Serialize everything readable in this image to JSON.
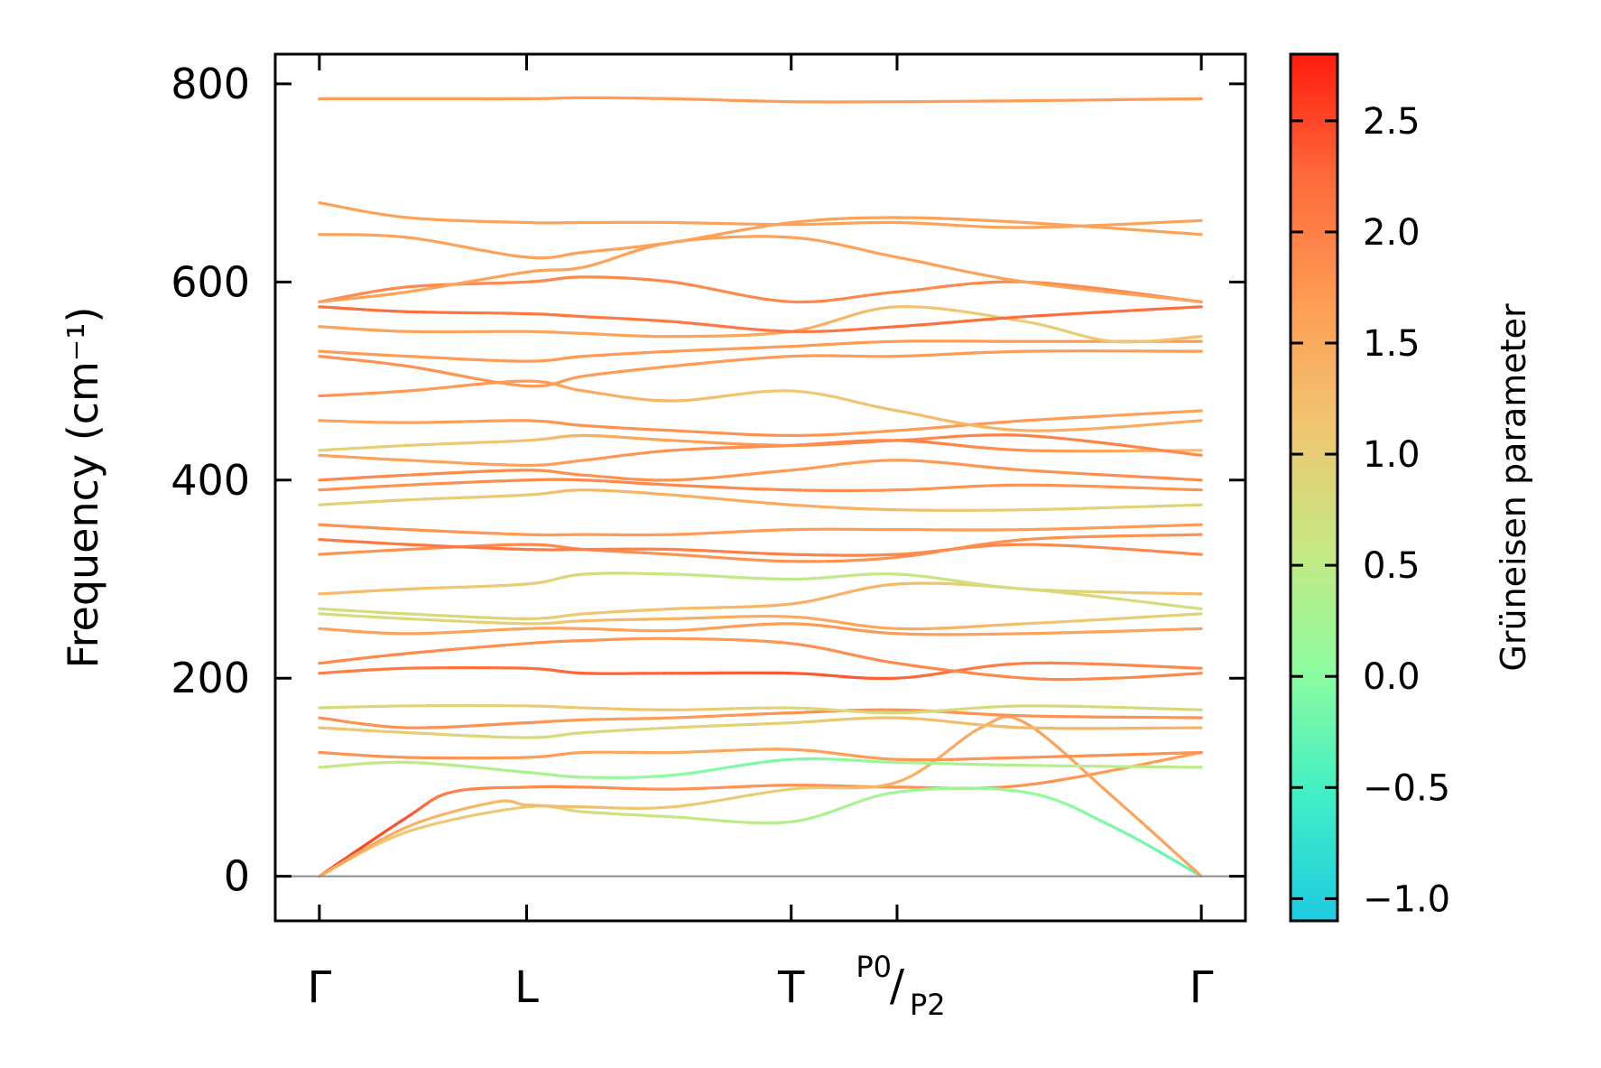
{
  "chart_data": {
    "type": "line",
    "ylabel": "Frequency (cm⁻¹)",
    "colorbar_label": "Grüneisen parameter",
    "ylim": [
      -45,
      830
    ],
    "yticks": [
      0,
      200,
      400,
      600,
      800
    ],
    "ytick_labels": [
      "0",
      "200",
      "400",
      "600",
      "800"
    ],
    "x_range": [
      -0.05,
      1.05
    ],
    "kpoints": [
      {
        "label": "Γ",
        "x": 0.0
      },
      {
        "label": "L",
        "x": 0.235
      },
      {
        "label": "T",
        "x": 0.535
      },
      {
        "label": "P0",
        "sub": "P2",
        "x": 0.655
      },
      {
        "label": "Γ",
        "x": 1.0
      }
    ],
    "colorbar": {
      "min": -1.1,
      "max": 2.8,
      "ticks": [
        -1.0,
        -0.5,
        0.0,
        0.5,
        1.0,
        1.5,
        2.0,
        2.5
      ],
      "tick_labels": [
        "−1.0",
        "−0.5",
        "0.0",
        "0.5",
        "1.0",
        "1.5",
        "2.0",
        "2.5"
      ],
      "colormap": [
        "#1ecbe1",
        "#40efc6",
        "#8cfc9f",
        "#c5e883",
        "#f0c671",
        "#ff9c55",
        "#ff6b3c",
        "#ff1c0d"
      ]
    },
    "zero_line_color": "#8c8c8c",
    "series": [
      {
        "x": [
          0,
          0.1,
          0.15,
          0.235,
          0.3,
          0.4,
          0.535,
          0.655,
          0.8,
          1
        ],
        "y": [
          0,
          60,
          85,
          90,
          90,
          88,
          92,
          90,
          92,
          125
        ],
        "g": [
          2.6,
          2.4,
          2.0,
          1.9,
          1.9,
          1.8,
          1.8,
          1.8,
          1.8,
          1.6
        ]
      },
      {
        "x": [
          0,
          0.1,
          0.235,
          0.3,
          0.4,
          0.535,
          0.655,
          0.8,
          0.9,
          1
        ],
        "y": [
          0,
          45,
          70,
          65,
          60,
          55,
          85,
          85,
          50,
          0
        ],
        "g": [
          1.2,
          1.1,
          1.0,
          0.8,
          0.6,
          0.4,
          0.2,
          0.1,
          -0.1,
          -0.3
        ]
      },
      {
        "x": [
          0,
          0.1,
          0.2,
          0.235,
          0.3,
          0.4,
          0.535,
          0.655,
          0.75,
          0.8,
          0.9,
          1
        ],
        "y": [
          0,
          50,
          75,
          72,
          70,
          70,
          88,
          95,
          150,
          155,
          80,
          0
        ],
        "g": [
          1.5,
          1.4,
          1.3,
          1.3,
          1.2,
          1.1,
          1.0,
          1.4,
          1.5,
          1.6,
          1.6,
          1.6
        ]
      },
      {
        "x": [
          0,
          0.1,
          0.235,
          0.3,
          0.4,
          0.535,
          0.655,
          0.8,
          1
        ],
        "y": [
          110,
          115,
          105,
          100,
          102,
          118,
          115,
          112,
          110
        ],
        "g": [
          0.6,
          0.5,
          0.3,
          0.2,
          0.0,
          -0.1,
          0.2,
          0.4,
          0.5
        ]
      },
      {
        "x": [
          0,
          0.1,
          0.235,
          0.3,
          0.4,
          0.535,
          0.655,
          0.8,
          1
        ],
        "y": [
          125,
          120,
          120,
          125,
          125,
          128,
          118,
          120,
          125
        ],
        "g": [
          1.8,
          1.8,
          1.7,
          1.6,
          1.5,
          1.6,
          1.7,
          1.8,
          1.8
        ]
      },
      {
        "x": [
          0,
          0.1,
          0.235,
          0.3,
          0.4,
          0.535,
          0.655,
          0.8,
          1
        ],
        "y": [
          150,
          145,
          140,
          145,
          150,
          155,
          160,
          150,
          150
        ],
        "g": [
          1.2,
          1.0,
          0.8,
          0.8,
          0.9,
          1.0,
          1.2,
          1.3,
          1.4
        ]
      },
      {
        "x": [
          0,
          0.1,
          0.235,
          0.3,
          0.4,
          0.535,
          0.655,
          0.8,
          1
        ],
        "y": [
          160,
          150,
          155,
          158,
          160,
          165,
          168,
          162,
          160
        ],
        "g": [
          1.8,
          1.8,
          1.8,
          1.7,
          1.7,
          1.8,
          1.8,
          1.8,
          1.8
        ]
      },
      {
        "x": [
          0,
          0.1,
          0.235,
          0.3,
          0.4,
          0.535,
          0.655,
          0.8,
          1
        ],
        "y": [
          170,
          172,
          172,
          170,
          168,
          170,
          165,
          172,
          168
        ],
        "g": [
          0.8,
          0.9,
          1.0,
          1.1,
          1.1,
          0.9,
          0.8,
          0.8,
          0.8
        ]
      },
      {
        "x": [
          0,
          0.1,
          0.235,
          0.3,
          0.4,
          0.535,
          0.655,
          0.8,
          1
        ],
        "y": [
          205,
          210,
          210,
          205,
          205,
          205,
          200,
          215,
          210
        ],
        "g": [
          2.0,
          2.1,
          2.2,
          2.3,
          2.3,
          2.4,
          2.3,
          2.0,
          1.9
        ]
      },
      {
        "x": [
          0,
          0.1,
          0.235,
          0.3,
          0.4,
          0.535,
          0.655,
          0.8,
          0.9,
          1
        ],
        "y": [
          215,
          225,
          235,
          238,
          240,
          235,
          215,
          200,
          200,
          205
        ],
        "g": [
          1.9,
          1.9,
          1.8,
          1.8,
          1.7,
          1.8,
          1.9,
          1.9,
          1.9,
          1.9
        ]
      },
      {
        "x": [
          0,
          0.1,
          0.235,
          0.3,
          0.4,
          0.535,
          0.655,
          0.8,
          1
        ],
        "y": [
          250,
          245,
          250,
          250,
          248,
          255,
          245,
          245,
          250
        ],
        "g": [
          1.6,
          1.6,
          1.6,
          1.6,
          1.6,
          1.7,
          1.7,
          1.6,
          1.6
        ]
      },
      {
        "x": [
          0,
          0.1,
          0.235,
          0.3,
          0.4,
          0.535,
          0.655,
          0.8,
          1
        ],
        "y": [
          265,
          260,
          255,
          258,
          260,
          262,
          250,
          255,
          265
        ],
        "g": [
          0.8,
          0.8,
          1.0,
          1.2,
          1.4,
          1.5,
          1.5,
          1.2,
          0.9
        ]
      },
      {
        "x": [
          0,
          0.1,
          0.235,
          0.3,
          0.4,
          0.535,
          0.655,
          0.8,
          1
        ],
        "y": [
          270,
          265,
          260,
          265,
          270,
          275,
          295,
          290,
          270
        ],
        "g": [
          0.7,
          0.8,
          1.0,
          1.1,
          1.2,
          1.4,
          1.3,
          0.9,
          0.7
        ]
      },
      {
        "x": [
          0,
          0.1,
          0.235,
          0.3,
          0.4,
          0.535,
          0.655,
          0.8,
          1
        ],
        "y": [
          285,
          290,
          295,
          305,
          305,
          300,
          305,
          290,
          285
        ],
        "g": [
          1.3,
          1.2,
          1.0,
          0.8,
          0.6,
          0.5,
          0.6,
          0.8,
          1.3
        ]
      },
      {
        "x": [
          0,
          0.1,
          0.235,
          0.3,
          0.4,
          0.535,
          0.655,
          0.8,
          1
        ],
        "y": [
          325,
          330,
          335,
          330,
          325,
          318,
          322,
          340,
          345
        ],
        "g": [
          1.8,
          1.8,
          1.9,
          1.9,
          1.8,
          1.8,
          1.8,
          1.8,
          1.8
        ]
      },
      {
        "x": [
          0,
          0.1,
          0.235,
          0.3,
          0.4,
          0.535,
          0.655,
          0.8,
          1
        ],
        "y": [
          340,
          335,
          330,
          330,
          330,
          325,
          325,
          335,
          325
        ],
        "g": [
          2.1,
          2.1,
          2.1,
          2.0,
          2.0,
          2.0,
          1.9,
          1.9,
          1.9
        ]
      },
      {
        "x": [
          0,
          0.1,
          0.235,
          0.3,
          0.4,
          0.535,
          0.655,
          0.8,
          1
        ],
        "y": [
          355,
          350,
          345,
          345,
          345,
          350,
          350,
          350,
          355
        ],
        "g": [
          1.8,
          1.8,
          1.7,
          1.7,
          1.7,
          1.7,
          1.7,
          1.7,
          1.7
        ]
      },
      {
        "x": [
          0,
          0.1,
          0.235,
          0.3,
          0.4,
          0.535,
          0.655,
          0.8,
          1
        ],
        "y": [
          375,
          380,
          385,
          390,
          385,
          375,
          370,
          370,
          375
        ],
        "g": [
          0.9,
          1.0,
          1.1,
          1.3,
          1.4,
          1.5,
          1.3,
          1.0,
          0.9
        ]
      },
      {
        "x": [
          0,
          0.1,
          0.235,
          0.3,
          0.4,
          0.535,
          0.655,
          0.8,
          1
        ],
        "y": [
          390,
          395,
          400,
          400,
          395,
          390,
          390,
          395,
          390
        ],
        "g": [
          1.8,
          1.8,
          1.9,
          1.9,
          1.9,
          1.9,
          1.8,
          1.8,
          1.8
        ]
      },
      {
        "x": [
          0,
          0.1,
          0.235,
          0.3,
          0.4,
          0.535,
          0.655,
          0.8,
          1
        ],
        "y": [
          400,
          405,
          410,
          405,
          400,
          410,
          420,
          410,
          400
        ],
        "g": [
          1.9,
          1.9,
          1.9,
          1.8,
          1.8,
          1.7,
          1.7,
          1.8,
          1.9
        ]
      },
      {
        "x": [
          0,
          0.1,
          0.235,
          0.3,
          0.4,
          0.535,
          0.655,
          0.8,
          1
        ],
        "y": [
          425,
          420,
          415,
          420,
          430,
          435,
          440,
          430,
          430
        ],
        "g": [
          1.6,
          1.6,
          1.6,
          1.7,
          1.8,
          1.9,
          2.0,
          1.8,
          1.2
        ]
      },
      {
        "x": [
          0,
          0.1,
          0.235,
          0.3,
          0.4,
          0.535,
          0.655,
          0.8,
          1
        ],
        "y": [
          430,
          435,
          440,
          445,
          440,
          435,
          440,
          445,
          425
        ],
        "g": [
          0.9,
          1.0,
          1.2,
          1.4,
          1.6,
          1.8,
          1.9,
          2.0,
          1.9
        ]
      },
      {
        "x": [
          0,
          0.1,
          0.235,
          0.3,
          0.4,
          0.535,
          0.655,
          0.8,
          1
        ],
        "y": [
          460,
          458,
          460,
          455,
          450,
          445,
          450,
          460,
          470
        ],
        "g": [
          1.6,
          1.6,
          1.7,
          1.8,
          1.8,
          1.8,
          1.7,
          1.7,
          1.6
        ]
      },
      {
        "x": [
          0,
          0.1,
          0.235,
          0.3,
          0.4,
          0.535,
          0.655,
          0.8,
          1
        ],
        "y": [
          485,
          490,
          500,
          490,
          480,
          490,
          470,
          450,
          460
        ],
        "g": [
          1.8,
          1.7,
          1.7,
          1.5,
          1.3,
          1.1,
          1.2,
          1.4,
          1.5
        ]
      },
      {
        "x": [
          0,
          0.1,
          0.235,
          0.3,
          0.4,
          0.535,
          0.655,
          0.8,
          1
        ],
        "y": [
          525,
          515,
          495,
          505,
          515,
          525,
          525,
          530,
          530
        ],
        "g": [
          1.8,
          1.8,
          1.7,
          1.7,
          1.7,
          1.7,
          1.7,
          1.7,
          1.7
        ]
      },
      {
        "x": [
          0,
          0.1,
          0.235,
          0.3,
          0.4,
          0.535,
          0.655,
          0.8,
          1
        ],
        "y": [
          530,
          525,
          520,
          525,
          530,
          535,
          540,
          540,
          540
        ],
        "g": [
          1.7,
          1.7,
          1.7,
          1.7,
          1.7,
          1.7,
          1.7,
          1.7,
          1.7
        ]
      },
      {
        "x": [
          0,
          0.1,
          0.235,
          0.3,
          0.4,
          0.535,
          0.655,
          0.8,
          0.9,
          1
        ],
        "y": [
          555,
          550,
          550,
          548,
          545,
          550,
          575,
          560,
          540,
          545
        ],
        "g": [
          1.6,
          1.6,
          1.6,
          1.6,
          1.6,
          1.5,
          1.2,
          1.0,
          1.1,
          1.2
        ]
      },
      {
        "x": [
          0,
          0.1,
          0.235,
          0.3,
          0.4,
          0.535,
          0.655,
          0.8,
          1
        ],
        "y": [
          575,
          570,
          568,
          565,
          560,
          550,
          555,
          565,
          575
        ],
        "g": [
          2.2,
          2.2,
          2.1,
          2.1,
          2.1,
          2.1,
          2.2,
          2.2,
          2.2
        ]
      },
      {
        "x": [
          0,
          0.1,
          0.235,
          0.3,
          0.4,
          0.535,
          0.655,
          0.8,
          1
        ],
        "y": [
          580,
          595,
          600,
          605,
          600,
          580,
          590,
          600,
          580
        ],
        "g": [
          1.9,
          1.9,
          1.9,
          1.9,
          1.9,
          1.9,
          1.9,
          1.9,
          1.9
        ]
      },
      {
        "x": [
          0,
          0.1,
          0.235,
          0.3,
          0.4,
          0.535,
          0.655,
          0.8,
          1
        ],
        "y": [
          580,
          590,
          610,
          615,
          640,
          645,
          625,
          600,
          580
        ],
        "g": [
          1.6,
          1.6,
          1.6,
          1.6,
          1.6,
          1.6,
          1.6,
          1.6,
          1.6
        ]
      },
      {
        "x": [
          0,
          0.1,
          0.235,
          0.3,
          0.4,
          0.535,
          0.655,
          0.8,
          1
        ],
        "y": [
          648,
          645,
          625,
          630,
          640,
          660,
          665,
          660,
          648
        ],
        "g": [
          1.6,
          1.6,
          1.6,
          1.6,
          1.6,
          1.6,
          1.6,
          1.6,
          1.6
        ]
      },
      {
        "x": [
          0,
          0.1,
          0.235,
          0.3,
          0.4,
          0.535,
          0.655,
          0.8,
          1
        ],
        "y": [
          680,
          665,
          660,
          660,
          660,
          658,
          660,
          655,
          662
        ],
        "g": [
          1.6,
          1.6,
          1.6,
          1.6,
          1.6,
          1.6,
          1.6,
          1.6,
          1.6
        ]
      },
      {
        "x": [
          0,
          0.1,
          0.235,
          0.3,
          0.4,
          0.535,
          0.655,
          0.8,
          1
        ],
        "y": [
          785,
          785,
          785,
          786,
          785,
          782,
          782,
          783,
          785
        ],
        "g": [
          1.7,
          1.7,
          1.7,
          1.7,
          1.7,
          1.7,
          1.7,
          1.7,
          1.7
        ]
      }
    ]
  }
}
